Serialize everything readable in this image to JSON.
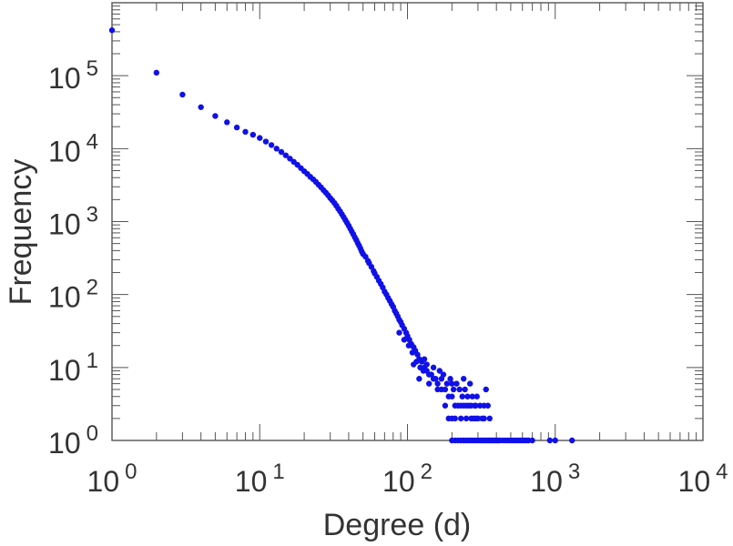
{
  "chart_data": {
    "type": "scatter",
    "title": "",
    "xlabel": "Degree (d)",
    "ylabel": "Frequency",
    "x_scale": "log",
    "y_scale": "log",
    "xlim": [
      1,
      10000
    ],
    "ylim": [
      1,
      1000000
    ],
    "grid": false,
    "x_ticks": [
      {
        "base": "10",
        "exp": "0",
        "value": 1
      },
      {
        "base": "10",
        "exp": "1",
        "value": 10
      },
      {
        "base": "10",
        "exp": "2",
        "value": 100
      },
      {
        "base": "10",
        "exp": "3",
        "value": 1000
      },
      {
        "base": "10",
        "exp": "4",
        "value": 10000
      }
    ],
    "y_ticks": [
      {
        "base": "10",
        "exp": "0",
        "value": 1
      },
      {
        "base": "10",
        "exp": "1",
        "value": 10
      },
      {
        "base": "10",
        "exp": "2",
        "value": 100
      },
      {
        "base": "10",
        "exp": "3",
        "value": 1000
      },
      {
        "base": "10",
        "exp": "4",
        "value": 10000
      },
      {
        "base": "10",
        "exp": "5",
        "value": 100000
      }
    ],
    "marker_color": "#1010e8",
    "series": [
      {
        "points": [
          [
            1,
            420000
          ],
          [
            2,
            110000
          ],
          [
            3,
            55000
          ],
          [
            4,
            37000
          ],
          [
            5,
            28000
          ],
          [
            6,
            23000
          ],
          [
            7,
            19500
          ],
          [
            8,
            17000
          ],
          [
            9,
            15500
          ],
          [
            10,
            14000
          ],
          [
            11,
            12500
          ],
          [
            12,
            11200
          ],
          [
            13,
            10000
          ],
          [
            14,
            9000
          ],
          [
            15,
            8100
          ],
          [
            16,
            7300
          ],
          [
            17,
            6600
          ],
          [
            18,
            6000
          ],
          [
            19,
            5400
          ],
          [
            20,
            4900
          ],
          [
            21,
            4500
          ],
          [
            22,
            4100
          ],
          [
            23,
            3800
          ],
          [
            24,
            3500
          ],
          [
            25,
            3200
          ],
          [
            26,
            2950
          ],
          [
            27,
            2700
          ],
          [
            28,
            2500
          ],
          [
            29,
            2300
          ],
          [
            30,
            2100
          ],
          [
            31,
            1950
          ],
          [
            32,
            1800
          ],
          [
            33,
            1650
          ],
          [
            34,
            1500
          ],
          [
            35,
            1380
          ],
          [
            36,
            1260
          ],
          [
            37,
            1150
          ],
          [
            38,
            1050
          ],
          [
            39,
            960
          ],
          [
            40,
            880
          ],
          [
            41,
            800
          ],
          [
            42,
            730
          ],
          [
            43,
            670
          ],
          [
            44,
            610
          ],
          [
            45,
            560
          ],
          [
            46,
            510
          ],
          [
            47,
            470
          ],
          [
            48,
            430
          ],
          [
            49,
            390
          ],
          [
            50,
            360
          ],
          [
            52,
            330
          ],
          [
            54,
            290
          ],
          [
            55,
            270
          ],
          [
            57,
            240
          ],
          [
            59,
            210
          ],
          [
            60,
            195
          ],
          [
            62,
            175
          ],
          [
            64,
            155
          ],
          [
            66,
            140
          ],
          [
            68,
            125
          ],
          [
            70,
            110
          ],
          [
            72,
            100
          ],
          [
            74,
            90
          ],
          [
            76,
            82
          ],
          [
            78,
            74
          ],
          [
            80,
            68
          ],
          [
            82,
            60
          ],
          [
            84,
            55
          ],
          [
            86,
            50
          ],
          [
            88,
            45
          ],
          [
            90,
            42
          ],
          [
            92,
            38
          ],
          [
            95,
            34
          ],
          [
            98,
            30
          ],
          [
            100,
            27
          ],
          [
            103,
            24
          ],
          [
            106,
            21
          ],
          [
            110,
            19
          ],
          [
            113,
            17
          ],
          [
            117,
            15
          ],
          [
            120,
            13
          ],
          [
            125,
            12
          ],
          [
            130,
            10
          ],
          [
            135,
            9
          ],
          [
            140,
            8
          ],
          [
            150,
            7
          ],
          [
            160,
            6
          ],
          [
            170,
            5
          ],
          [
            180,
            5
          ],
          [
            190,
            4
          ],
          [
            200,
            4
          ],
          [
            210,
            3
          ],
          [
            220,
            3
          ],
          [
            230,
            3
          ],
          [
            240,
            3
          ],
          [
            250,
            2
          ],
          [
            260,
            3
          ],
          [
            270,
            2
          ],
          [
            280,
            2
          ],
          [
            290,
            2
          ],
          [
            300,
            2
          ],
          [
            310,
            3
          ],
          [
            320,
            2
          ],
          [
            330,
            2
          ],
          [
            340,
            5
          ],
          [
            350,
            3
          ],
          [
            360,
            2
          ],
          [
            88,
            30
          ],
          [
            95,
            24
          ],
          [
            102,
            20
          ],
          [
            108,
            16
          ],
          [
            115,
            12
          ],
          [
            122,
            10
          ],
          [
            128,
            9
          ],
          [
            135,
            11
          ],
          [
            145,
            8
          ],
          [
            155,
            7
          ],
          [
            165,
            9
          ],
          [
            175,
            8
          ],
          [
            185,
            6
          ],
          [
            195,
            7
          ],
          [
            205,
            5
          ],
          [
            215,
            6
          ],
          [
            225,
            5
          ],
          [
            235,
            4
          ],
          [
            245,
            5
          ],
          [
            255,
            4
          ],
          [
            265,
            6
          ],
          [
            275,
            4
          ],
          [
            285,
            3
          ],
          [
            295,
            4
          ],
          [
            190,
            2
          ],
          [
            200,
            2
          ],
          [
            210,
            2
          ],
          [
            230,
            2
          ],
          [
            250,
            3
          ],
          [
            270,
            3
          ],
          [
            290,
            3
          ],
          [
            330,
            3
          ],
          [
            120,
            7
          ],
          [
            140,
            6
          ],
          [
            160,
            5
          ],
          [
            180,
            3
          ],
          [
            110,
            11
          ],
          [
            130,
            13
          ],
          [
            150,
            10
          ],
          [
            170,
            7
          ],
          [
            200,
            6
          ],
          [
            240,
            7
          ],
          [
            200,
            1
          ],
          [
            210,
            1
          ],
          [
            220,
            1
          ],
          [
            230,
            1
          ],
          [
            240,
            1
          ],
          [
            250,
            1
          ],
          [
            260,
            1
          ],
          [
            270,
            1
          ],
          [
            280,
            1
          ],
          [
            290,
            1
          ],
          [
            300,
            1
          ],
          [
            310,
            1
          ],
          [
            320,
            1
          ],
          [
            330,
            1
          ],
          [
            340,
            1
          ],
          [
            350,
            1
          ],
          [
            360,
            1
          ],
          [
            370,
            1
          ],
          [
            380,
            1
          ],
          [
            390,
            1
          ],
          [
            400,
            1
          ],
          [
            410,
            1
          ],
          [
            420,
            1
          ],
          [
            440,
            1
          ],
          [
            460,
            1
          ],
          [
            480,
            1
          ],
          [
            500,
            1
          ],
          [
            520,
            1
          ],
          [
            540,
            1
          ],
          [
            560,
            1
          ],
          [
            580,
            1
          ],
          [
            600,
            1
          ],
          [
            620,
            1
          ],
          [
            640,
            1
          ],
          [
            660,
            1
          ],
          [
            700,
            1
          ],
          [
            920,
            1
          ],
          [
            1000,
            1
          ],
          [
            1300,
            1
          ]
        ]
      }
    ]
  }
}
